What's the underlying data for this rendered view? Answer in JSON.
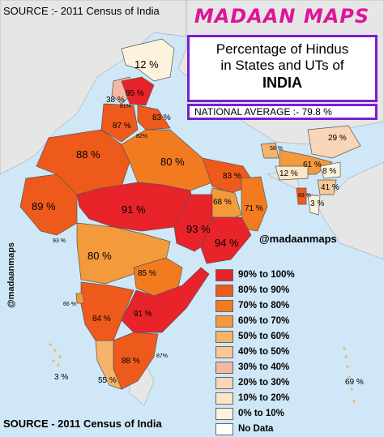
{
  "source_top": "SOURCE :- 2011 Census of India",
  "source_bottom": "SOURCE - 2011 Census of India",
  "brand": "MADAAN MAPS",
  "title": {
    "line1": "Percentage of Hindus",
    "line2": "in States and UTs of",
    "line3": "INDIA"
  },
  "national_average": "NATIONAL AVERAGE :- 79.8 %",
  "handle": "@madaanmaps",
  "legend": [
    {
      "label": "90% to 100%",
      "color": "#e8232a"
    },
    {
      "label": "80% to 90%",
      "color": "#ee5a1c"
    },
    {
      "label": "70% to 80%",
      "color": "#f27b1f"
    },
    {
      "label": "60% to 70%",
      "color": "#f29a3c"
    },
    {
      "label": "50% to 60%",
      "color": "#f6b36a"
    },
    {
      "label": "40% to 50%",
      "color": "#f8c89a"
    },
    {
      "label": "30% to 40%",
      "color": "#f4b8a2"
    },
    {
      "label": "20% to 30%",
      "color": "#fad6b8"
    },
    {
      "label": "10% to 20%",
      "color": "#fbe6c6"
    },
    {
      "label": "0% to 10%",
      "color": "#fdf3dc"
    },
    {
      "label": "No Data",
      "color": "#ffffff"
    }
  ],
  "values": {
    "jk": "12 %",
    "ladakh_small": "38 %",
    "ladakh_tiny": "81%",
    "hp": "95 %",
    "punjab_haryana": "87 %",
    "chandigarh": "82%",
    "uk": "83 %",
    "rajasthan": "88 %",
    "up": "80 %",
    "bihar": "83 %",
    "sikkim": "58 %",
    "arunachal": "29 %",
    "assam": "61 %",
    "nagaland": "8 %",
    "meghalaya": "12 %",
    "manipur": "41 %",
    "mizoram": "3 %",
    "tripura": "83 %",
    "wb": "71 %",
    "jharkhand": "68 %",
    "gujarat": "89 %",
    "mp": "91 %",
    "chhattisgarh": "93 %",
    "odisha": "94 %",
    "dnh": "93 %",
    "maharashtra": "80 %",
    "telangana": "85 %",
    "goa": "66 %",
    "karnataka": "84 %",
    "ap": "91 %",
    "puducherry": "87%",
    "tn": "88 %",
    "kerala": "55 %",
    "lakshadweep": "3 %",
    "andaman": "69 %"
  }
}
